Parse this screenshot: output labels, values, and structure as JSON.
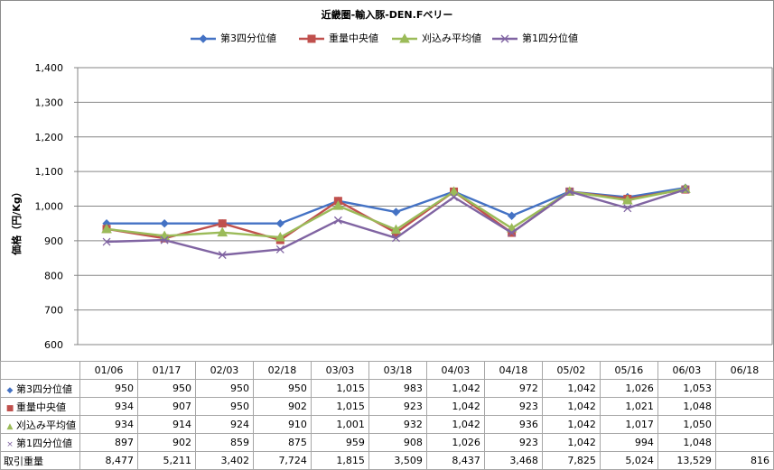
{
  "chart_data": {
    "type": "line",
    "title": "近畿圏-輸入豚-DEN.Fベリー",
    "ylabel": "価格（円/Kg）",
    "ylim": [
      600,
      1400
    ],
    "yticks": [
      600,
      700,
      800,
      900,
      1000,
      1100,
      1200,
      1300,
      1400
    ],
    "ytick_labels": [
      "600",
      "700",
      "800",
      "900",
      "1,000",
      "1,100",
      "1,200",
      "1,300",
      "1,400"
    ],
    "grid": true,
    "legend_position": "top",
    "categories": [
      "01/06",
      "01/17",
      "02/03",
      "02/18",
      "03/03",
      "03/18",
      "04/03",
      "04/18",
      "05/02",
      "05/16",
      "06/03",
      "06/18"
    ],
    "series": [
      {
        "name": "第3四分位値",
        "color": "#4472c4",
        "marker": "diamond",
        "values": [
          950,
          950,
          950,
          950,
          1015,
          983,
          1042,
          972,
          1042,
          1026,
          1053,
          null
        ],
        "labels": [
          "950",
          "950",
          "950",
          "950",
          "1,015",
          "983",
          "1,042",
          "972",
          "1,042",
          "1,026",
          "1,053",
          ""
        ]
      },
      {
        "name": "重量中央値",
        "color": "#c0504d",
        "marker": "square",
        "values": [
          934,
          907,
          950,
          902,
          1015,
          923,
          1042,
          923,
          1042,
          1021,
          1048,
          null
        ],
        "labels": [
          "934",
          "907",
          "950",
          "902",
          "1,015",
          "923",
          "1,042",
          "923",
          "1,042",
          "1,021",
          "1,048",
          ""
        ]
      },
      {
        "name": "刈込み平均値",
        "color": "#9bbb59",
        "marker": "triangle",
        "values": [
          934,
          914,
          924,
          910,
          1001,
          932,
          1042,
          936,
          1042,
          1017,
          1050,
          null
        ],
        "labels": [
          "934",
          "914",
          "924",
          "910",
          "1,001",
          "932",
          "1,042",
          "936",
          "1,042",
          "1,017",
          "1,050",
          ""
        ]
      },
      {
        "name": "第1四分位値",
        "color": "#8064a2",
        "marker": "x",
        "values": [
          897,
          902,
          859,
          875,
          959,
          908,
          1026,
          923,
          1042,
          994,
          1048,
          null
        ],
        "labels": [
          "897",
          "902",
          "859",
          "875",
          "959",
          "908",
          "1,026",
          "923",
          "1,042",
          "994",
          "1,048",
          ""
        ]
      }
    ],
    "volume": {
      "name": "取引重量",
      "values": [
        8477,
        5211,
        3402,
        7724,
        1815,
        3509,
        8437,
        3468,
        7825,
        5024,
        13529,
        816
      ],
      "labels": [
        "8,477",
        "5,211",
        "3,402",
        "7,724",
        "1,815",
        "3,509",
        "8,437",
        "3,468",
        "7,825",
        "5,024",
        "13,529",
        "816"
      ]
    }
  }
}
